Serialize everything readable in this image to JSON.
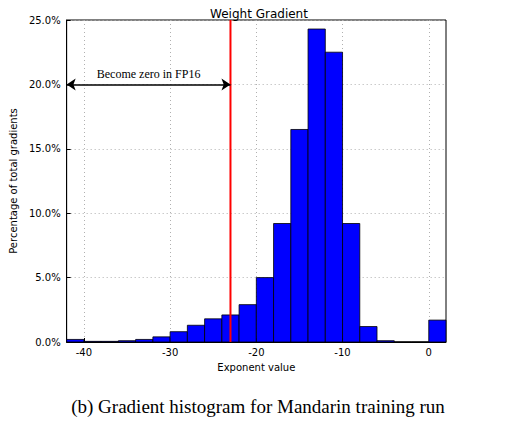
{
  "chart_data": {
    "type": "histogram",
    "title": "Weight Gradient",
    "x_label": "Exponent value",
    "y_label": "Percentage of total gradients",
    "caption": "(b) Gradient histogram for Mandarin training run",
    "bins": [
      -42,
      -40,
      -38,
      -36,
      -34,
      -32,
      -30,
      -28,
      -26,
      -24,
      -22,
      -20,
      -18,
      -16,
      -14,
      -12,
      -10,
      -8,
      -6,
      -4,
      -2,
      0,
      2
    ],
    "values": [
      0.2,
      0.05,
      0.05,
      0.1,
      0.2,
      0.4,
      0.8,
      1.3,
      1.8,
      2.1,
      2.9,
      5.0,
      9.2,
      16.5,
      24.3,
      22.5,
      9.2,
      1.2,
      0.1,
      0,
      0,
      1.7
    ],
    "color": "#0000ff",
    "xlim": [
      -42,
      2
    ],
    "xticks": [
      -40,
      -30,
      -20,
      -10,
      0
    ],
    "ylim": [
      0,
      25
    ],
    "yticks": [
      {
        "value": 0,
        "label": "0.0%"
      },
      {
        "value": 5,
        "label": "5.0%"
      },
      {
        "value": 10,
        "label": "10.0%"
      },
      {
        "value": 15,
        "label": "15.0%"
      },
      {
        "value": 20,
        "label": "20.0%"
      },
      {
        "value": 25,
        "label": "25.0%"
      }
    ],
    "grid": true,
    "vline": {
      "x": -23,
      "color": "#ff0000"
    },
    "annotation": {
      "text": "Become zero in FP16",
      "x": [
        -42,
        -23
      ],
      "y": 20
    }
  }
}
